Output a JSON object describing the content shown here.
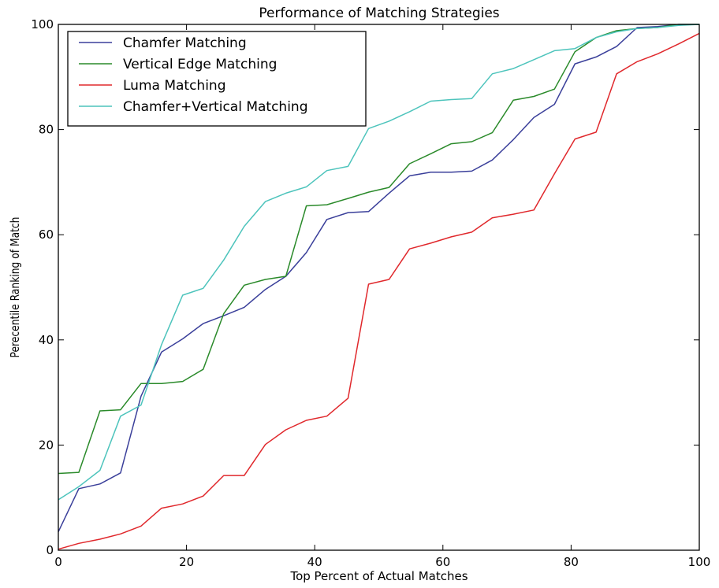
{
  "chart_data": {
    "type": "line",
    "title": "Performance of Matching Strategies",
    "xlabel": "Top Percent of Actual Matches",
    "ylabel": "Perecentile Ranking of Match",
    "xlim": [
      0,
      100
    ],
    "ylim": [
      0,
      100
    ],
    "xticks": [
      0,
      20,
      40,
      60,
      80,
      100
    ],
    "yticks": [
      0,
      20,
      40,
      60,
      80,
      100
    ],
    "grid": false,
    "legend_position": "top-left",
    "series": [
      {
        "name": "Chamfer Matching",
        "color": "#3a3f9a",
        "points": [
          [
            0,
            3.5
          ],
          [
            3.2,
            11.7
          ],
          [
            6.5,
            12.6
          ],
          [
            9.7,
            14.7
          ],
          [
            12.9,
            29.3
          ],
          [
            16.1,
            37.7
          ],
          [
            19.4,
            40.2
          ],
          [
            22.6,
            43.1
          ],
          [
            25.8,
            44.6
          ],
          [
            29.0,
            46.2
          ],
          [
            32.3,
            49.6
          ],
          [
            35.5,
            52.1
          ],
          [
            38.7,
            56.6
          ],
          [
            41.9,
            62.9
          ],
          [
            45.2,
            64.2
          ],
          [
            48.4,
            64.4
          ],
          [
            51.6,
            67.9
          ],
          [
            54.8,
            71.2
          ],
          [
            58.1,
            71.9
          ],
          [
            61.3,
            71.9
          ],
          [
            64.5,
            72.1
          ],
          [
            67.7,
            74.2
          ],
          [
            71.0,
            78.1
          ],
          [
            74.2,
            82.3
          ],
          [
            77.4,
            84.8
          ],
          [
            80.6,
            92.5
          ],
          [
            83.9,
            93.8
          ],
          [
            87.1,
            95.8
          ],
          [
            90.3,
            99.4
          ],
          [
            93.5,
            99.6
          ],
          [
            96.8,
            100
          ],
          [
            100,
            100
          ]
        ]
      },
      {
        "name": "Vertical Edge Matching",
        "color": "#2a8a2a",
        "points": [
          [
            0,
            14.6
          ],
          [
            3.2,
            14.8
          ],
          [
            6.5,
            26.5
          ],
          [
            9.7,
            26.7
          ],
          [
            12.9,
            31.7
          ],
          [
            16.1,
            31.7
          ],
          [
            19.4,
            32.1
          ],
          [
            22.6,
            34.4
          ],
          [
            25.8,
            45.0
          ],
          [
            29.0,
            50.4
          ],
          [
            32.3,
            51.5
          ],
          [
            35.5,
            52.1
          ],
          [
            38.7,
            65.5
          ],
          [
            41.9,
            65.7
          ],
          [
            45.2,
            66.9
          ],
          [
            48.4,
            68.1
          ],
          [
            51.6,
            69.0
          ],
          [
            54.8,
            73.5
          ],
          [
            58.1,
            75.4
          ],
          [
            61.3,
            77.3
          ],
          [
            64.5,
            77.7
          ],
          [
            67.7,
            79.4
          ],
          [
            71.0,
            85.6
          ],
          [
            74.2,
            86.3
          ],
          [
            77.4,
            87.7
          ],
          [
            80.6,
            94.8
          ],
          [
            83.9,
            97.5
          ],
          [
            87.1,
            98.8
          ],
          [
            90.3,
            99.2
          ],
          [
            93.5,
            99.4
          ],
          [
            96.8,
            100
          ],
          [
            100,
            100
          ]
        ]
      },
      {
        "name": "Luma Matching",
        "color": "#e0282c",
        "points": [
          [
            0,
            0.2
          ],
          [
            3.2,
            1.3
          ],
          [
            6.5,
            2.1
          ],
          [
            9.7,
            3.1
          ],
          [
            12.9,
            4.6
          ],
          [
            16.1,
            8.0
          ],
          [
            19.4,
            8.8
          ],
          [
            22.6,
            10.3
          ],
          [
            25.8,
            14.2
          ],
          [
            29.0,
            14.2
          ],
          [
            32.3,
            20.1
          ],
          [
            35.5,
            22.9
          ],
          [
            38.7,
            24.7
          ],
          [
            41.9,
            25.5
          ],
          [
            45.2,
            28.9
          ],
          [
            48.4,
            50.6
          ],
          [
            51.6,
            51.5
          ],
          [
            54.8,
            57.3
          ],
          [
            58.1,
            58.4
          ],
          [
            61.3,
            59.6
          ],
          [
            64.5,
            60.5
          ],
          [
            67.7,
            63.2
          ],
          [
            71.0,
            63.9
          ],
          [
            74.2,
            64.7
          ],
          [
            77.4,
            71.6
          ],
          [
            80.6,
            78.2
          ],
          [
            83.9,
            79.5
          ],
          [
            87.1,
            90.6
          ],
          [
            90.3,
            92.9
          ],
          [
            93.5,
            94.4
          ],
          [
            96.8,
            96.3
          ],
          [
            100,
            98.3
          ]
        ]
      },
      {
        "name": "Chamfer+Vertical Matching",
        "color": "#4dc4bc",
        "points": [
          [
            0,
            9.6
          ],
          [
            3.2,
            12.1
          ],
          [
            6.5,
            15.2
          ],
          [
            9.7,
            25.5
          ],
          [
            12.9,
            27.6
          ],
          [
            16.1,
            39.1
          ],
          [
            19.4,
            48.5
          ],
          [
            22.6,
            49.8
          ],
          [
            25.8,
            55.2
          ],
          [
            29.0,
            61.6
          ],
          [
            32.3,
            66.3
          ],
          [
            35.5,
            67.9
          ],
          [
            38.7,
            69.1
          ],
          [
            41.9,
            72.2
          ],
          [
            45.2,
            73.0
          ],
          [
            48.4,
            80.2
          ],
          [
            51.6,
            81.6
          ],
          [
            54.8,
            83.4
          ],
          [
            58.1,
            85.4
          ],
          [
            61.3,
            85.7
          ],
          [
            64.5,
            85.9
          ],
          [
            67.7,
            90.6
          ],
          [
            71.0,
            91.6
          ],
          [
            74.2,
            93.3
          ],
          [
            77.4,
            95.0
          ],
          [
            80.6,
            95.4
          ],
          [
            83.9,
            97.5
          ],
          [
            87.1,
            98.6
          ],
          [
            90.3,
            99.2
          ],
          [
            93.5,
            99.4
          ],
          [
            96.8,
            99.8
          ],
          [
            100,
            100
          ]
        ]
      }
    ]
  }
}
